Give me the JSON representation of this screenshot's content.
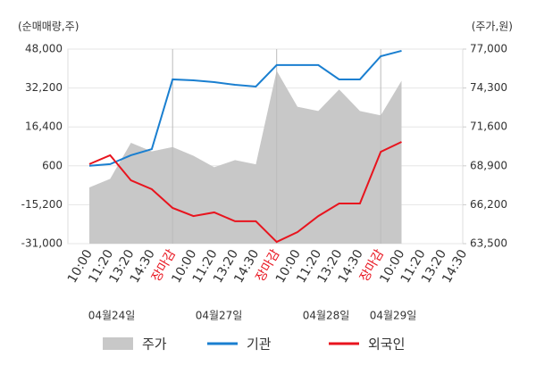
{
  "chart_data": {
    "type": "line",
    "y_axis_label": "(순매매량,주)",
    "y2_axis_label": "(주가,원)",
    "categories": [
      "10:00",
      "11:20",
      "13:20",
      "14:30",
      "장마감",
      "10:00",
      "11:20",
      "13:20",
      "14:30",
      "장마감",
      "10:00",
      "11:20",
      "13:20",
      "14:30",
      "장마감",
      "10:00",
      "11:20",
      "13:20",
      "14:30"
    ],
    "dates": [
      "04월24일",
      "04월27일",
      "04월28일",
      "04월29일"
    ],
    "series": [
      {
        "name": "주가",
        "color": "#c8c8c8",
        "axis": "y2",
        "kind": "area",
        "values": [
          67400,
          68000,
          70500,
          69900,
          70200,
          69600,
          68800,
          69300,
          69000,
          75500,
          73000,
          72700,
          74200,
          72700,
          72400,
          74800,
          null,
          null,
          null
        ]
      },
      {
        "name": "기관",
        "color": "#1a7fd0",
        "values": [
          600,
          1300,
          4900,
          7400,
          35700,
          35300,
          34600,
          33500,
          32800,
          41500,
          41500,
          41500,
          35700,
          35700,
          45100,
          47300,
          null,
          null,
          null
        ]
      },
      {
        "name": "외국인",
        "color": "#e8141e",
        "values": [
          1300,
          4900,
          -5300,
          -8900,
          -16500,
          -19800,
          -18300,
          -21900,
          -21900,
          -30300,
          -26300,
          -19800,
          -14700,
          -14700,
          6300,
          10300,
          null,
          null,
          null
        ]
      }
    ],
    "ylim": [
      -31000,
      48000
    ],
    "yticks": [
      {
        "value": -31000,
        "label": "-31,000"
      },
      {
        "value": -15200,
        "label": "-15,200"
      },
      600,
      {
        "value": 16400,
        "label": "16,400"
      },
      {
        "value": 32200,
        "label": "32,200"
      },
      {
        "value": 48000,
        "label": "48,000"
      }
    ],
    "y2lim": [
      63500,
      77000
    ],
    "y2ticks": [
      {
        "value": 63500,
        "label": "63,500"
      },
      {
        "value": 66200,
        "label": "66,200"
      },
      {
        "value": 68900,
        "label": "68,900"
      },
      {
        "value": 71600,
        "label": "71,600"
      },
      {
        "value": 74300,
        "label": "74,300"
      },
      {
        "value": 77000,
        "label": "77,000"
      }
    ],
    "grid": true,
    "highlight_color": "#e8141e"
  }
}
